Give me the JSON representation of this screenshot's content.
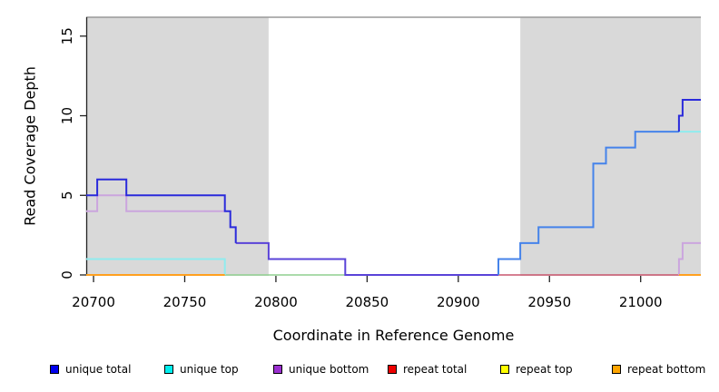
{
  "chart_data": {
    "type": "line",
    "subtype": "step-coverage-plot",
    "title": "",
    "xlabel": "Coordinate in Reference Genome",
    "ylabel": "Read Coverage Depth",
    "x_ticks": [
      20700,
      20750,
      20800,
      20850,
      20900,
      20950,
      21000
    ],
    "y_ticks": [
      0,
      5,
      10,
      15
    ],
    "xlim": [
      20696,
      21033
    ],
    "ylim": [
      0,
      16.2
    ],
    "grid": "off",
    "legend_position": "bottom",
    "background_color": "#ffffff",
    "shaded_region_color": "#d9d9d9",
    "top_border_color": "#999999",
    "axis_color": "#222222",
    "shaded_regions": [
      {
        "from": 20696,
        "to": 20796
      },
      {
        "from": 20934,
        "to": 21033
      }
    ],
    "legend": [
      {
        "label": "unique total",
        "color": "#0000ee"
      },
      {
        "label": "unique top",
        "color": "#00eeee"
      },
      {
        "label": "unique bottom",
        "color": "#9b30d0"
      },
      {
        "label": "repeat total",
        "color": "#ee0000"
      },
      {
        "label": "repeat top",
        "color": "#ffff00"
      },
      {
        "label": "repeat bottom",
        "color": "#ffa500"
      }
    ],
    "series": [
      {
        "name": "baseline-green",
        "color": "#8fcf8f",
        "width": 1.6,
        "points": [
          [
            20772,
            0
          ],
          [
            20838,
            0
          ]
        ]
      },
      {
        "name": "repeat-total-right",
        "color": "#c9566e",
        "width": 1.6,
        "points": [
          [
            20922,
            0
          ],
          [
            21021,
            0
          ]
        ]
      },
      {
        "name": "unique-bottom-left",
        "color": "#cba5de",
        "width": 2,
        "points": [
          [
            20696,
            4
          ],
          [
            20702,
            4
          ],
          [
            20702,
            5
          ],
          [
            20718,
            5
          ],
          [
            20718,
            4
          ],
          [
            20772,
            4
          ]
        ]
      },
      {
        "name": "unique-top-left",
        "color": "#8fecee",
        "width": 2,
        "points": [
          [
            20696,
            1
          ],
          [
            20772,
            1
          ],
          [
            20772,
            0
          ]
        ]
      },
      {
        "name": "unique-total-mid",
        "color": "#5a43d8",
        "width": 2,
        "points": [
          [
            20778,
            2
          ],
          [
            20796,
            2
          ],
          [
            20796,
            1
          ],
          [
            20838,
            1
          ],
          [
            20838,
            0
          ],
          [
            20922,
            0
          ]
        ]
      },
      {
        "name": "unique-total-left",
        "color": "#2a2adb",
        "width": 2,
        "points": [
          [
            20696,
            5
          ],
          [
            20702,
            5
          ],
          [
            20702,
            6
          ],
          [
            20718,
            6
          ],
          [
            20718,
            5
          ],
          [
            20772,
            5
          ],
          [
            20772,
            4
          ],
          [
            20775,
            4
          ],
          [
            20775,
            3
          ],
          [
            20778,
            3
          ],
          [
            20778,
            2
          ]
        ]
      },
      {
        "name": "unique-total-right-rise",
        "color": "#4583ea",
        "width": 2,
        "points": [
          [
            20922,
            0
          ],
          [
            20922,
            1
          ],
          [
            20934,
            1
          ],
          [
            20934,
            2
          ],
          [
            20944,
            2
          ],
          [
            20944,
            3
          ],
          [
            20974,
            3
          ],
          [
            20974,
            7
          ],
          [
            20981,
            7
          ],
          [
            20981,
            8
          ],
          [
            20997,
            8
          ],
          [
            20997,
            9
          ],
          [
            21021,
            9
          ]
        ]
      },
      {
        "name": "unique-top-right",
        "color": "#8fecee",
        "width": 2,
        "points": [
          [
            21021,
            9
          ],
          [
            21033,
            9
          ]
        ]
      },
      {
        "name": "unique-bottom-right",
        "color": "#cba5de",
        "width": 2,
        "points": [
          [
            21021,
            0
          ],
          [
            21021,
            1
          ],
          [
            21023,
            1
          ],
          [
            21023,
            2
          ],
          [
            21033,
            2
          ]
        ]
      },
      {
        "name": "unique-total-right-top",
        "color": "#2a2adb",
        "width": 2,
        "points": [
          [
            21021,
            9
          ],
          [
            21021,
            10
          ],
          [
            21023,
            10
          ],
          [
            21023,
            11
          ],
          [
            21033,
            11
          ]
        ]
      },
      {
        "name": "repeat-bottom-left",
        "color": "#ffa01e",
        "width": 2,
        "points": [
          [
            20696,
            0
          ],
          [
            20772,
            0
          ]
        ]
      },
      {
        "name": "repeat-bottom-right",
        "color": "#ffa01e",
        "width": 2,
        "points": [
          [
            21021,
            0
          ],
          [
            21033,
            0
          ]
        ]
      }
    ]
  }
}
